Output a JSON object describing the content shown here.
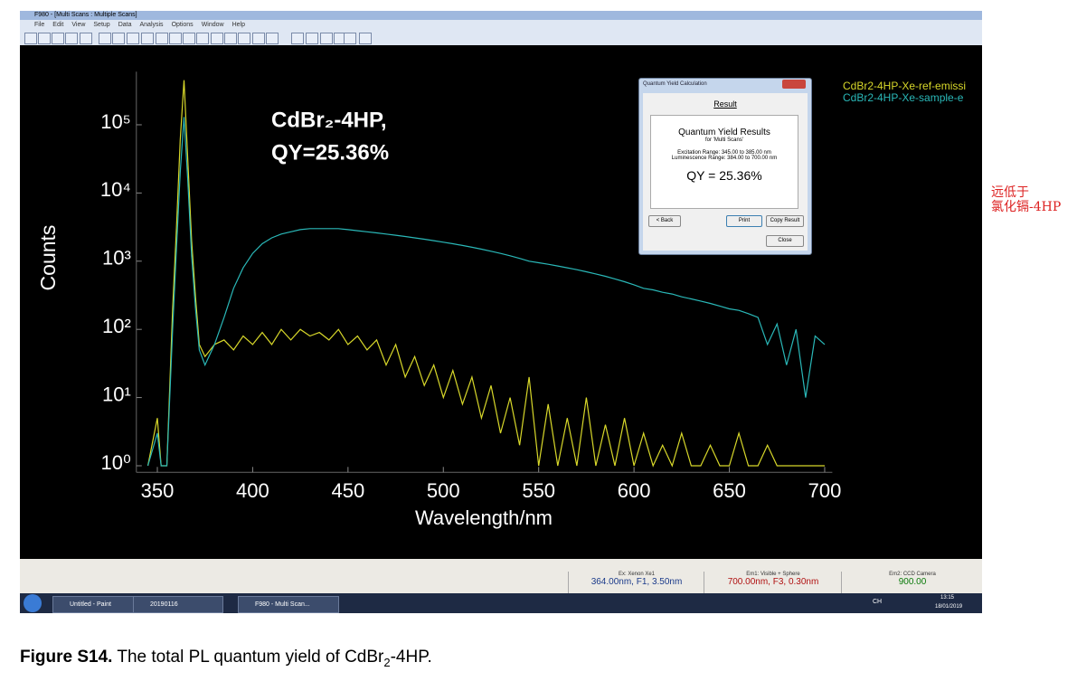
{
  "window": {
    "title": "F980 - [Multi Scans : Multiple Scans]",
    "menu": [
      "File",
      "Edit",
      "View",
      "Setup",
      "Data",
      "Analysis",
      "Options",
      "Window",
      "Help"
    ]
  },
  "chart_data": {
    "type": "line",
    "annotation": [
      "CdBr₂-4HP,",
      "QY=25.36%"
    ],
    "x_label": "Wavelength/nm",
    "y_label": "Counts",
    "log_y": true,
    "legend_position": "upper right",
    "xlim": [
      339,
      704
    ],
    "xticks": [
      350,
      400,
      450,
      500,
      550,
      600,
      650,
      700
    ],
    "ylim": [
      0.8,
      600000
    ],
    "yticks": [
      {
        "value": 1,
        "label": "10⁰"
      },
      {
        "value": 10,
        "label": "10¹"
      },
      {
        "value": 100,
        "label": "10²"
      },
      {
        "value": 1000,
        "label": "10³"
      },
      {
        "value": 10000,
        "label": "10⁴"
      },
      {
        "value": 100000,
        "label": "10⁵"
      }
    ],
    "x": [
      345,
      350,
      352,
      355,
      358,
      360,
      362,
      364,
      366,
      368,
      370,
      372,
      375,
      380,
      385,
      390,
      395,
      400,
      405,
      410,
      415,
      420,
      425,
      430,
      435,
      440,
      445,
      450,
      455,
      460,
      465,
      470,
      475,
      480,
      485,
      490,
      495,
      500,
      505,
      510,
      515,
      520,
      525,
      530,
      535,
      540,
      545,
      550,
      555,
      560,
      565,
      570,
      575,
      580,
      585,
      590,
      595,
      600,
      605,
      610,
      615,
      620,
      625,
      630,
      635,
      640,
      645,
      650,
      655,
      660,
      665,
      670,
      675,
      680,
      685,
      690,
      695,
      700
    ],
    "series": [
      {
        "name": "CdBr2-4HP-Xe-ref-emissi",
        "color": "#d8d82a",
        "values": [
          1,
          5,
          1,
          1,
          200,
          3000,
          60000,
          450000,
          30000,
          2000,
          300,
          60,
          40,
          60,
          70,
          50,
          80,
          60,
          90,
          60,
          100,
          70,
          100,
          80,
          90,
          70,
          100,
          60,
          80,
          50,
          70,
          30,
          60,
          20,
          40,
          15,
          30,
          10,
          25,
          8,
          20,
          5,
          15,
          3,
          10,
          2,
          20,
          1,
          8,
          1,
          5,
          1,
          10,
          1,
          4,
          1,
          5,
          1,
          3,
          1,
          2,
          1,
          3,
          1,
          1,
          2,
          1,
          1,
          3,
          1,
          1,
          2,
          1,
          1,
          1,
          1,
          1,
          1
        ]
      },
      {
        "name": "CdBr2-4HP-Xe-sample-e",
        "color": "#2ab8b8",
        "values": [
          1,
          3,
          1,
          1,
          100,
          1500,
          20000,
          130000,
          15000,
          1200,
          200,
          50,
          30,
          60,
          150,
          400,
          800,
          1300,
          1800,
          2200,
          2500,
          2700,
          2900,
          3000,
          3000,
          3000,
          3000,
          2900,
          2800,
          2700,
          2600,
          2500,
          2400,
          2300,
          2200,
          2100,
          2000,
          1900,
          1800,
          1700,
          1600,
          1500,
          1400,
          1300,
          1200,
          1100,
          1000,
          950,
          900,
          850,
          800,
          750,
          700,
          650,
          600,
          550,
          500,
          450,
          400,
          380,
          350,
          330,
          300,
          280,
          260,
          240,
          220,
          200,
          190,
          170,
          150,
          60,
          120,
          30,
          100,
          10,
          80,
          60
        ]
      }
    ]
  },
  "dialog": {
    "title": "Quantum Yield Calculation",
    "heading": "Result",
    "box_title": "Quantum Yield Results",
    "box_subtitle": "for 'Multi Scans'",
    "excitation": "Excitation Range: 345.00 to 385.00 nm",
    "luminescence": "Luminescence Range: 384.00 to 700.00 nm",
    "result": "QY = 25.36%",
    "buttons": [
      "< Back",
      "Print",
      "Copy Result",
      "Close"
    ]
  },
  "status_bar": [
    {
      "header": "Ex: Xenon Xe1",
      "value": "364.00nm, F1, 3.50nm"
    },
    {
      "header": "Em1: Visible + Sphere",
      "value": "700.00nm, F3, 0.30nm"
    },
    {
      "header": "Em2: CCD Camera",
      "value": "900.00"
    }
  ],
  "taskbar": {
    "items": [
      "Untitled - Paint",
      "20190116",
      "F980 - Multi Scan..."
    ],
    "language": "CH",
    "time": "13:15",
    "date": "18/01/2019"
  },
  "note": [
    "远低于",
    "氯化镉-4HP"
  ],
  "caption": {
    "label": "Figure S14.",
    "text": " The total PL quantum yield of CdBr",
    "subscript": "2",
    "text_end": "-4HP."
  }
}
